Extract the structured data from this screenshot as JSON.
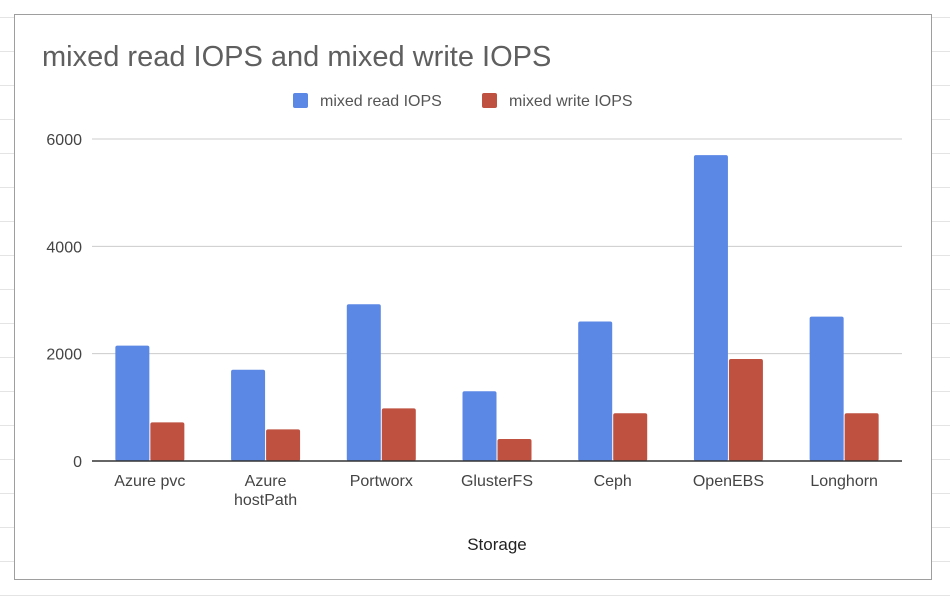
{
  "chart_data": {
    "type": "bar",
    "title": "mixed read IOPS and mixed write IOPS",
    "xlabel": "Storage",
    "ylabel": "",
    "categories": [
      "Azure pvc",
      "Azure hostPath",
      "Portworx",
      "GlusterFS",
      "Ceph",
      "OpenEBS",
      "Longhorn"
    ],
    "category_lines": [
      [
        "Azure pvc"
      ],
      [
        "Azure",
        "hostPath"
      ],
      [
        "Portworx"
      ],
      [
        "GlusterFS"
      ],
      [
        "Ceph"
      ],
      [
        "OpenEBS"
      ],
      [
        "Longhorn"
      ]
    ],
    "series": [
      {
        "name": "mixed read IOPS",
        "color": "#5b87e5",
        "values": [
          2150,
          1700,
          2920,
          1300,
          2600,
          5700,
          2690
        ]
      },
      {
        "name": "mixed write IOPS",
        "color": "#bf5141",
        "values": [
          720,
          590,
          980,
          410,
          890,
          1900,
          890
        ]
      }
    ],
    "yticks": [
      0,
      2000,
      4000,
      6000
    ],
    "ylim": [
      0,
      6000
    ],
    "grid": true,
    "legend_position": "top-center"
  }
}
